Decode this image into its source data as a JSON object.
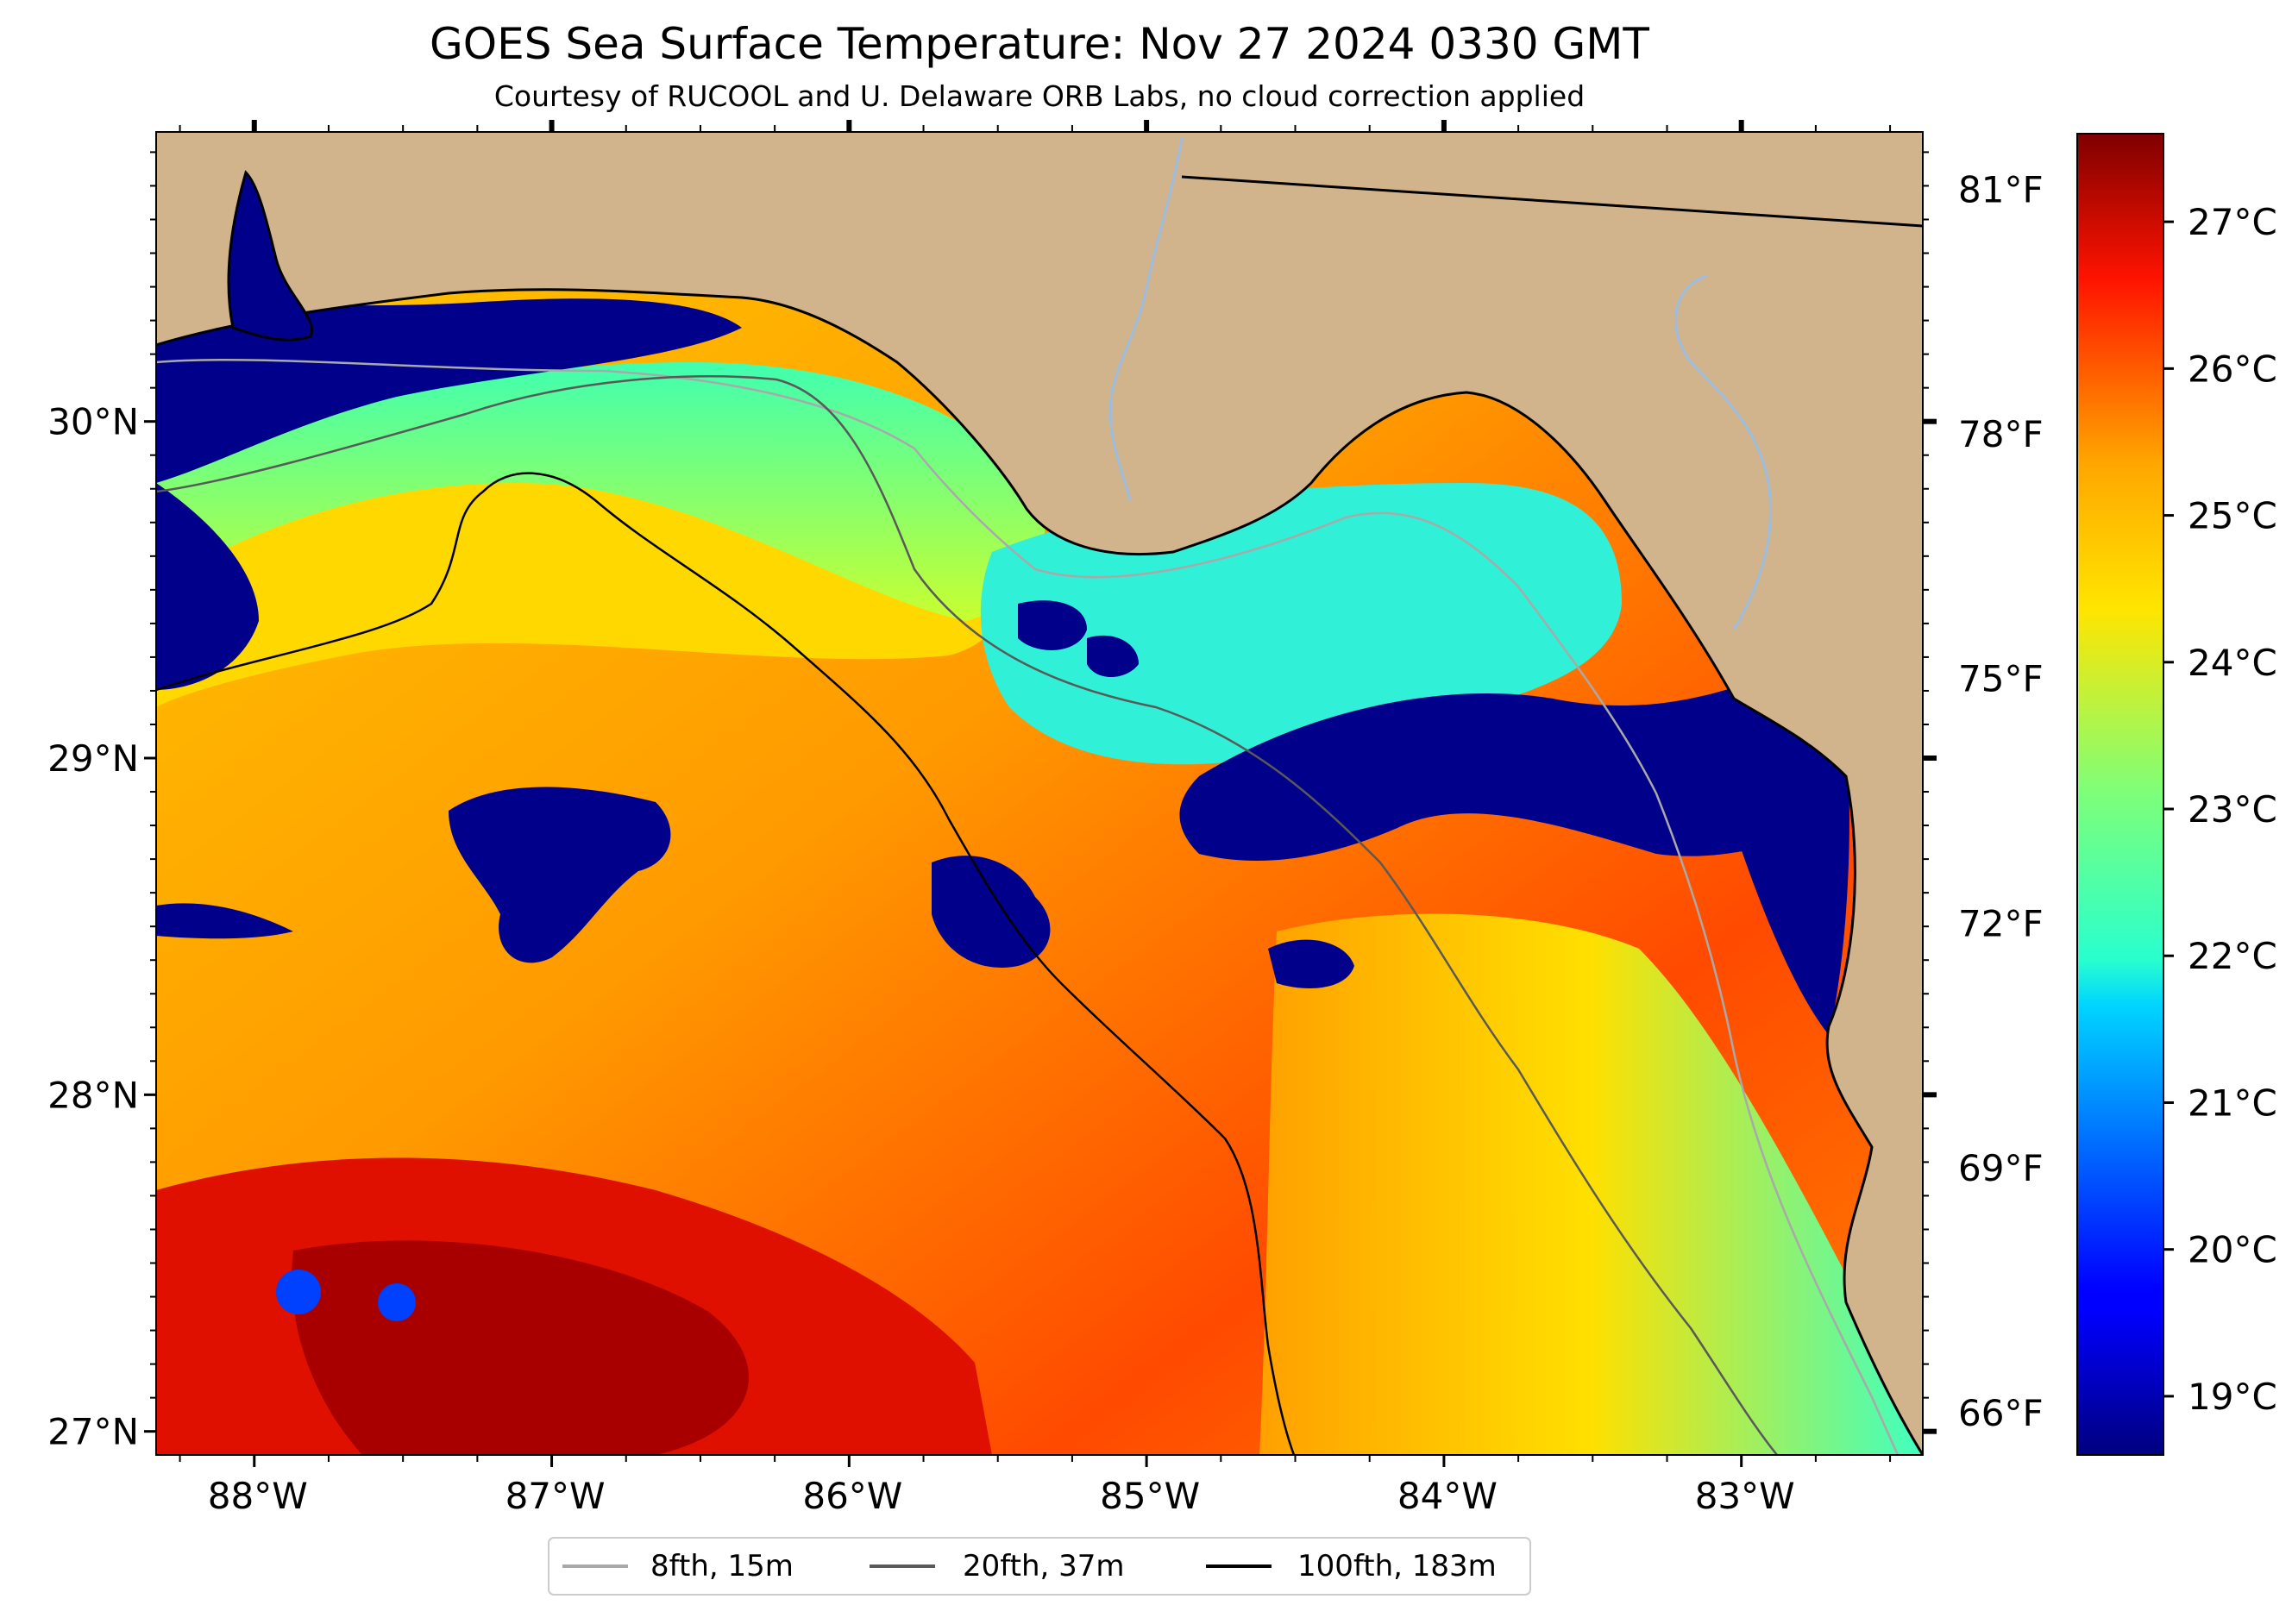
{
  "title": "GOES Sea Surface Temperature: Nov 27 2024 0330 GMT",
  "subtitle": "Courtesy of RUCOOL and U. Delaware ORB Labs, no cloud correction applied",
  "colors": {
    "land": "#d2b48c",
    "cold": "#00008b",
    "coast": "#000000",
    "river": "#9dbde0",
    "iso8": "#a9a9a9",
    "iso20": "#595959",
    "iso100": "#000000"
  },
  "chart_data": {
    "type": "heatmap",
    "colormap": "jet",
    "units": "°C",
    "x_axis": {
      "range": [
        -88.33,
        -82.39
      ],
      "ticks": [
        -88,
        -87,
        -86,
        -85,
        -84,
        -83
      ],
      "tick_labels": [
        "88°W",
        "87°W",
        "86°W",
        "85°W",
        "84°W",
        "83°W"
      ]
    },
    "y_axis_left": {
      "range": [
        26.93,
        30.86
      ],
      "ticks": [
        27,
        28,
        29,
        30
      ],
      "tick_labels": [
        "27°N",
        "28°N",
        "29°N",
        "30°N"
      ]
    },
    "colorbar": {
      "range_c": [
        18.6,
        27.6
      ],
      "ticks_c": [
        19,
        20,
        21,
        22,
        23,
        24,
        25,
        26,
        27
      ],
      "tick_labels_c": [
        "19°C",
        "20°C",
        "21°C",
        "22°C",
        "23°C",
        "24°C",
        "25°C",
        "26°C",
        "27°C"
      ],
      "ticks_f": [
        66,
        69,
        72,
        75,
        78,
        81
      ],
      "tick_labels_f": [
        "66°F",
        "69°F",
        "72°F",
        "75°F",
        "78°F",
        "81°F"
      ]
    },
    "legend": {
      "placement": "bottom-center",
      "items": [
        {
          "label": "8fth, 15m",
          "color": "#a9a9a9"
        },
        {
          "label": "20fth, 37m",
          "color": "#595959"
        },
        {
          "label": "100fth, 183m",
          "color": "#000000"
        }
      ]
    }
  }
}
